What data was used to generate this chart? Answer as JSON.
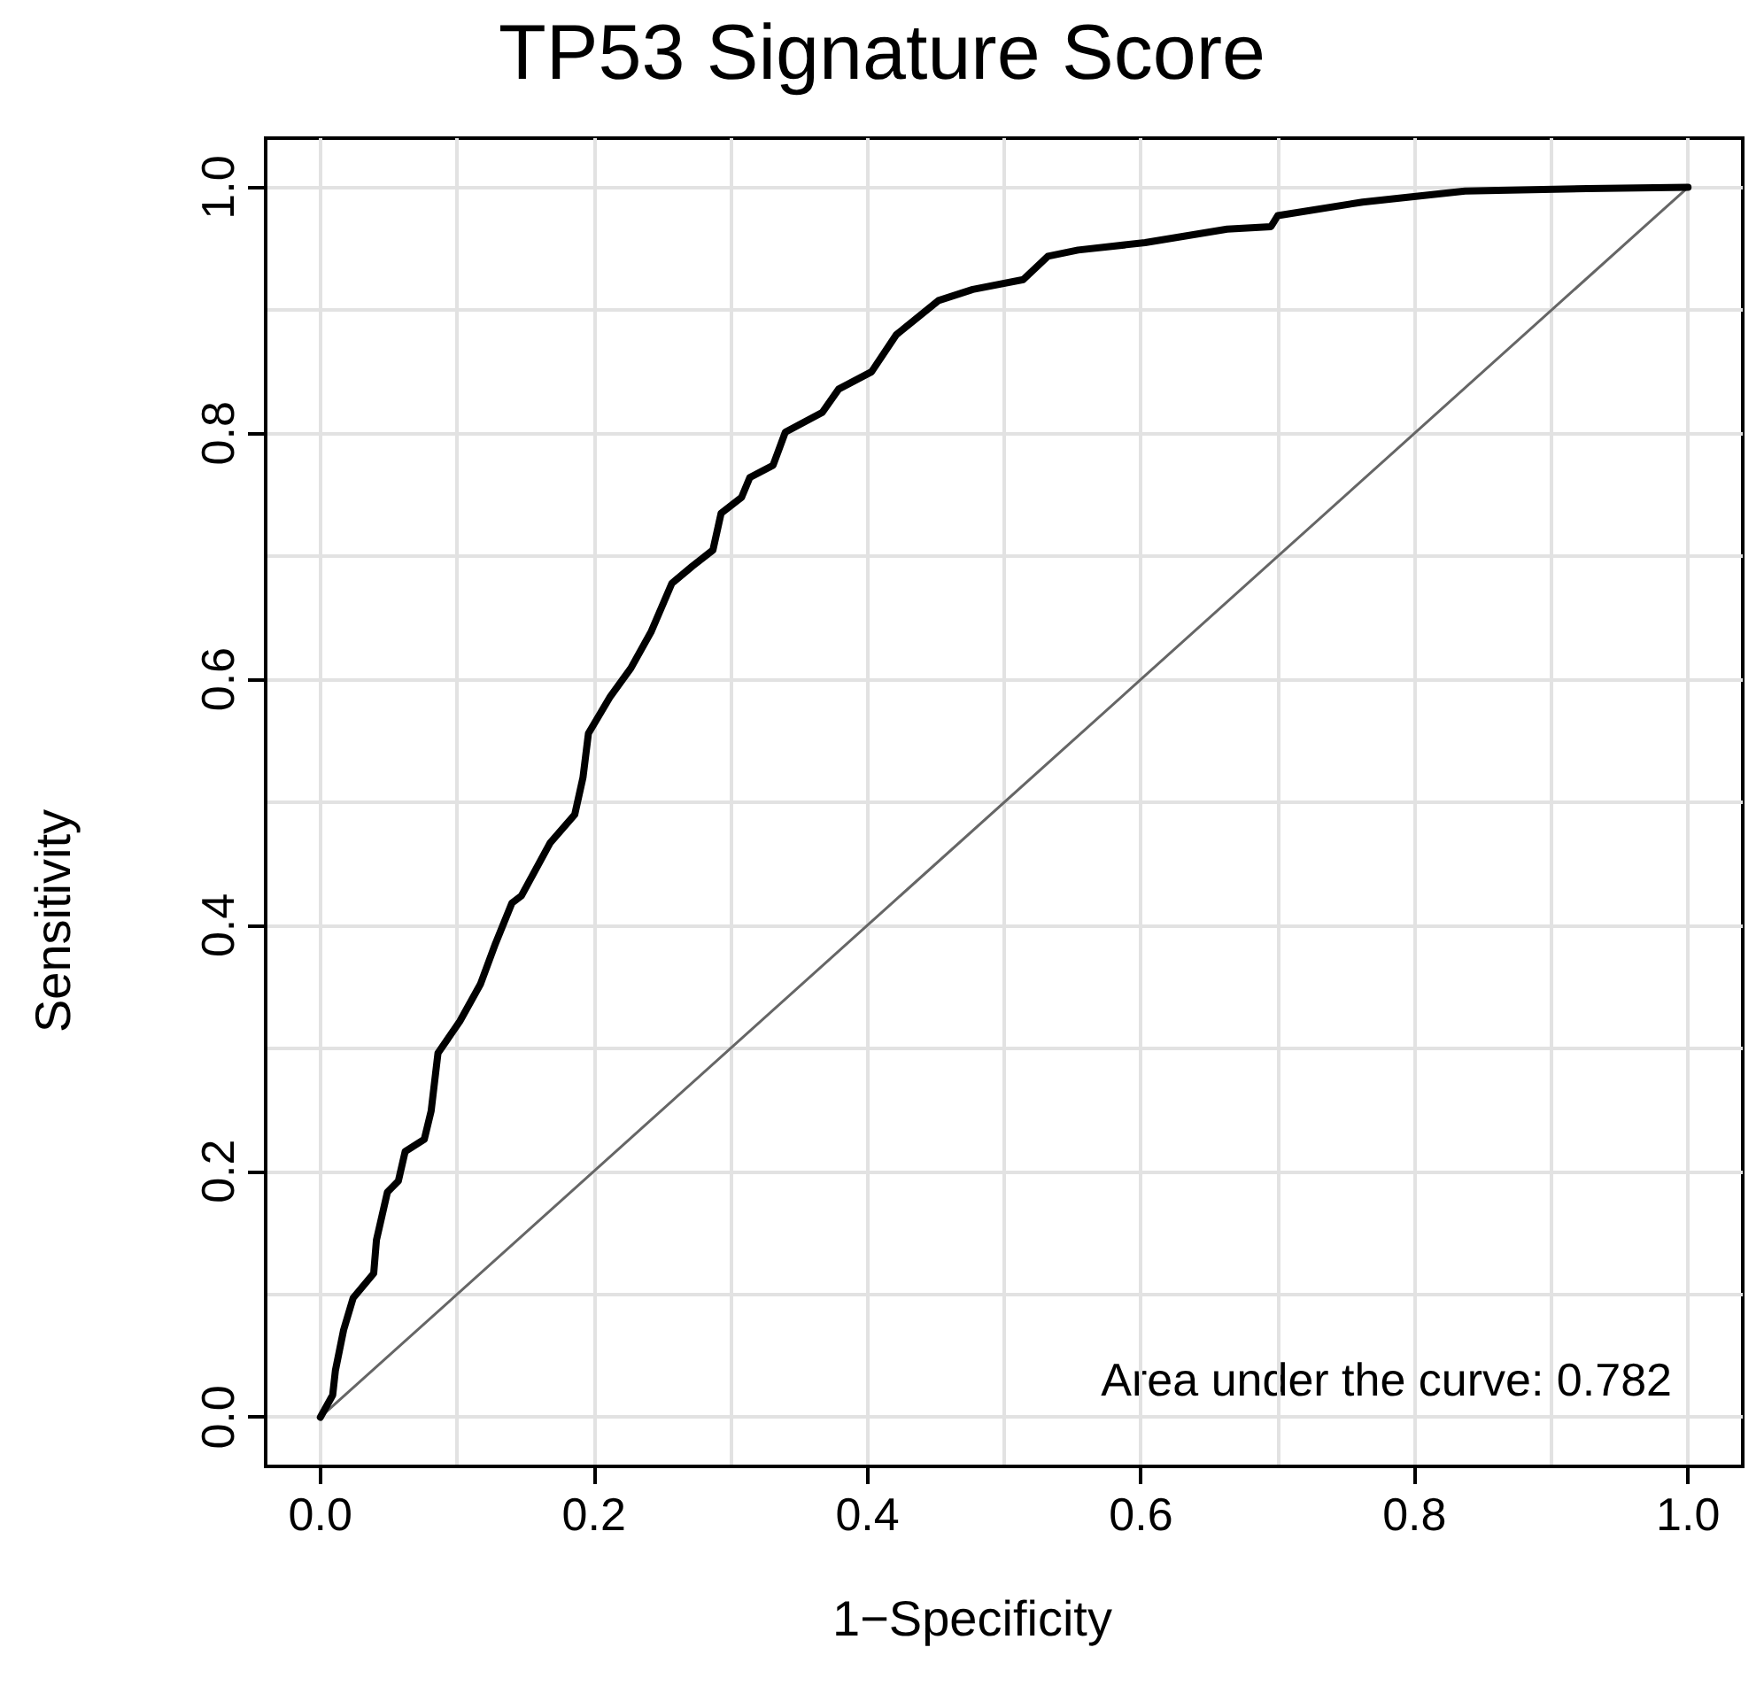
{
  "chart_data": {
    "type": "line",
    "title": "TP53 Signature Score",
    "xlabel": "1−Specificity",
    "ylabel": "Sensitivity",
    "annotations": [
      "Area under the curve: 0.782"
    ],
    "series": [
      {
        "color": "#000000",
        "x": [
          0,
          0.009,
          0.011,
          0.017,
          0.024,
          0.039,
          0.041,
          0.049,
          0.057,
          0.062,
          0.076,
          0.081,
          0.086,
          0.102,
          0.117,
          0.128,
          0.14,
          0.147,
          0.168,
          0.186,
          0.192,
          0.196,
          0.212,
          0.227,
          0.242,
          0.257,
          0.272,
          0.287,
          0.293,
          0.308,
          0.314,
          0.331,
          0.34,
          0.367,
          0.379,
          0.403,
          0.421,
          0.452,
          0.477,
          0.514,
          0.532,
          0.554,
          0.603,
          0.663,
          0.695,
          0.7,
          0.762,
          0.837,
          0.926,
          1.0
        ],
        "values": [
          0,
          0.018,
          0.038,
          0.071,
          0.097,
          0.117,
          0.144,
          0.183,
          0.192,
          0.216,
          0.226,
          0.249,
          0.296,
          0.322,
          0.352,
          0.385,
          0.418,
          0.424,
          0.467,
          0.49,
          0.52,
          0.556,
          0.586,
          0.609,
          0.639,
          0.678,
          0.692,
          0.705,
          0.735,
          0.748,
          0.764,
          0.774,
          0.801,
          0.817,
          0.836,
          0.85,
          0.88,
          0.908,
          0.917,
          0.925,
          0.944,
          0.949,
          0.955,
          0.966,
          0.968,
          0.977,
          0.988,
          0.997,
          0.999,
          1.0
        ]
      },
      {
        "color": "#666666",
        "x": [
          0,
          1
        ],
        "values": [
          0,
          1
        ]
      }
    ],
    "xlim": [
      -0.04,
      1.04
    ],
    "ylim": [
      -0.04,
      1.04
    ],
    "xticks": [
      {
        "value": 0,
        "label": "0.0"
      },
      {
        "value": 0.1,
        "label": null
      },
      {
        "value": 0.2,
        "label": "0.2"
      },
      {
        "value": 0.3,
        "label": null
      },
      {
        "value": 0.4,
        "label": "0.4"
      },
      {
        "value": 0.5,
        "label": null
      },
      {
        "value": 0.6,
        "label": "0.6"
      },
      {
        "value": 0.7,
        "label": null
      },
      {
        "value": 0.8,
        "label": "0.8"
      },
      {
        "value": 0.9,
        "label": null
      },
      {
        "value": 1,
        "label": "1.0"
      }
    ],
    "yticks": [
      {
        "value": 0,
        "label": "0.0"
      },
      {
        "value": 0.1,
        "label": null
      },
      {
        "value": 0.2,
        "label": "0.2"
      },
      {
        "value": 0.3,
        "label": null
      },
      {
        "value": 0.4,
        "label": "0.4"
      },
      {
        "value": 0.5,
        "label": null
      },
      {
        "value": 0.6,
        "label": "0.6"
      },
      {
        "value": 0.7,
        "label": null
      },
      {
        "value": 0.8,
        "label": "0.8"
      },
      {
        "value": 0.9,
        "label": null
      },
      {
        "value": 1,
        "label": "1.0"
      }
    ],
    "grid": true,
    "marker": "none",
    "line_style": "solid"
  }
}
